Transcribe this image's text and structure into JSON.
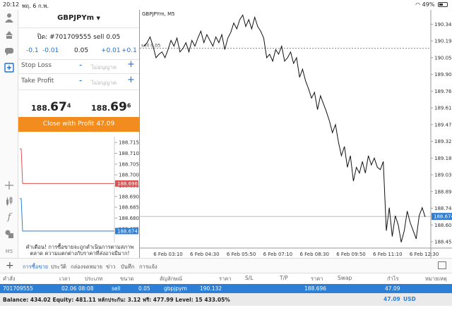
{
  "status_bar": {
    "time": "20:12",
    "date": "พฤ. 6 ก.พ.",
    "battery": "49%"
  },
  "toolbar_icons": [
    "user-icon",
    "trade-icon",
    "chat-icon",
    "new-order-icon",
    "crosshair-icon",
    "candles-icon",
    "function-icon",
    "objects-icon",
    "timeframe-label"
  ],
  "toolbar_timeframe": "M5",
  "order": {
    "symbol": "GBPJPYm",
    "ticket_line": "ปิด: #701709555 sell 0.05",
    "vol_minus_big": "-0.1",
    "vol_minus_small": "-0.01",
    "volume": "0.05",
    "vol_plus_small": "+0.01",
    "vol_plus_big": "+0.1",
    "stop_loss_label": "Stop Loss",
    "take_profit_label": "Take Profit",
    "field_placeholder": "ไม่อนุญาต",
    "bid_prefix": "188.",
    "bid_big": "67",
    "bid_sup": "4",
    "ask_prefix": "188.",
    "ask_big": "69",
    "ask_sup": "6",
    "close_button": "Close with Profit 47.09",
    "warning": "คำเตือน! การซื้อขายจะถูกดำเนินการตามสภาพตลาด ความแตกต่างกับราคาที่ส่งอาจมีมาก!"
  },
  "mini_chart": {
    "ticks": [
      "188.715",
      "188.710",
      "188.705",
      "188.700",
      "188.695",
      "188.690",
      "188.685",
      "188.680",
      "188.675"
    ],
    "ask_label": "188.696",
    "bid_label": "188.674",
    "ask_color": "#e05050",
    "bid_color": "#2d7fd6",
    "ask_series": [
      188.712,
      188.712,
      188.696,
      188.696,
      188.696
    ],
    "bid_series": [
      188.689,
      188.689,
      188.674,
      188.674,
      188.674
    ]
  },
  "main_chart_caption": "GBPJPYm, M5",
  "chart_data": {
    "type": "line",
    "title": "GBPJPYm, M5",
    "ylim": [
      188.4,
      190.44
    ],
    "y_ticks": [
      "190.340",
      "190.195",
      "190.050",
      "189.905",
      "189.760",
      "189.615",
      "189.470",
      "189.325",
      "189.180",
      "189.035",
      "188.890",
      "188.745",
      "188.600",
      "188.455"
    ],
    "x_tick_labels": [
      "6 Feb 03:10",
      "6 Feb 04:30",
      "6 Feb 05:50",
      "6 Feb 07:10",
      "6 Feb 08:30",
      "6 Feb 09:50",
      "6 Feb 11:10",
      "6 Feb 12:30"
    ],
    "order_level": 190.132,
    "order_label": "sell 0.05",
    "bid_level": 188.674,
    "bid_label": "188.674",
    "series": [
      {
        "values": [
          190.15,
          190.18,
          190.23,
          190.15,
          190.05,
          190.08,
          190.1,
          190.05,
          190.12,
          190.2,
          190.15,
          190.22,
          190.1,
          190.13,
          190.18,
          190.1,
          190.2,
          190.15,
          190.22,
          190.28,
          190.18,
          190.25,
          190.2,
          190.15,
          190.23,
          190.18,
          190.25,
          190.12,
          190.22,
          190.27,
          190.35,
          190.3,
          190.38,
          190.42,
          190.32,
          190.38,
          190.3,
          190.4,
          190.32,
          190.28,
          190.22,
          190.05,
          190.08,
          190.02,
          190.12,
          190.08,
          190.15,
          190.02,
          190.05,
          190.1,
          190.0,
          190.05,
          189.88,
          189.95,
          189.85,
          189.78,
          189.7,
          189.75,
          189.6,
          189.72,
          189.65,
          189.58,
          189.5,
          189.4,
          189.47,
          189.32,
          189.2,
          189.28,
          189.1,
          189.2,
          188.98,
          189.1,
          189.05,
          189.15,
          189.05,
          189.2,
          189.12,
          189.18,
          189.1,
          189.08,
          189.15,
          188.55,
          188.75,
          188.5,
          188.68,
          188.6,
          188.45,
          188.55,
          188.72,
          188.62,
          188.55,
          188.48,
          188.68,
          188.75,
          188.67
        ]
      }
    ]
  },
  "tabs": [
    "การซื้อขาย",
    "ประวัติ",
    "กล่องจดหมาย",
    "ข่าว",
    "บันทึก",
    "การแจ้ง"
  ],
  "table": {
    "headers": [
      "คำสั่ง",
      "เวลา",
      "ประเภท",
      "ขนาด",
      "สัญลักษณ์",
      "ราคา",
      "S/L",
      "T/P",
      "ราคา",
      "Swap",
      "กำไร",
      "หมายเหตุ"
    ],
    "row": [
      "701709555",
      "02.06 08:08",
      "sell",
      "0.05",
      "gbpjpym",
      "190.132",
      "",
      "",
      "188.696",
      "",
      "47.09",
      ""
    ]
  },
  "balance": {
    "text": "Balance: 434.02 Equity: 481.11 หลักประกัน: 3.12 ฟรี: 477.99 Level: 15 433.05%",
    "profit": "47.09",
    "currency": "USD"
  }
}
